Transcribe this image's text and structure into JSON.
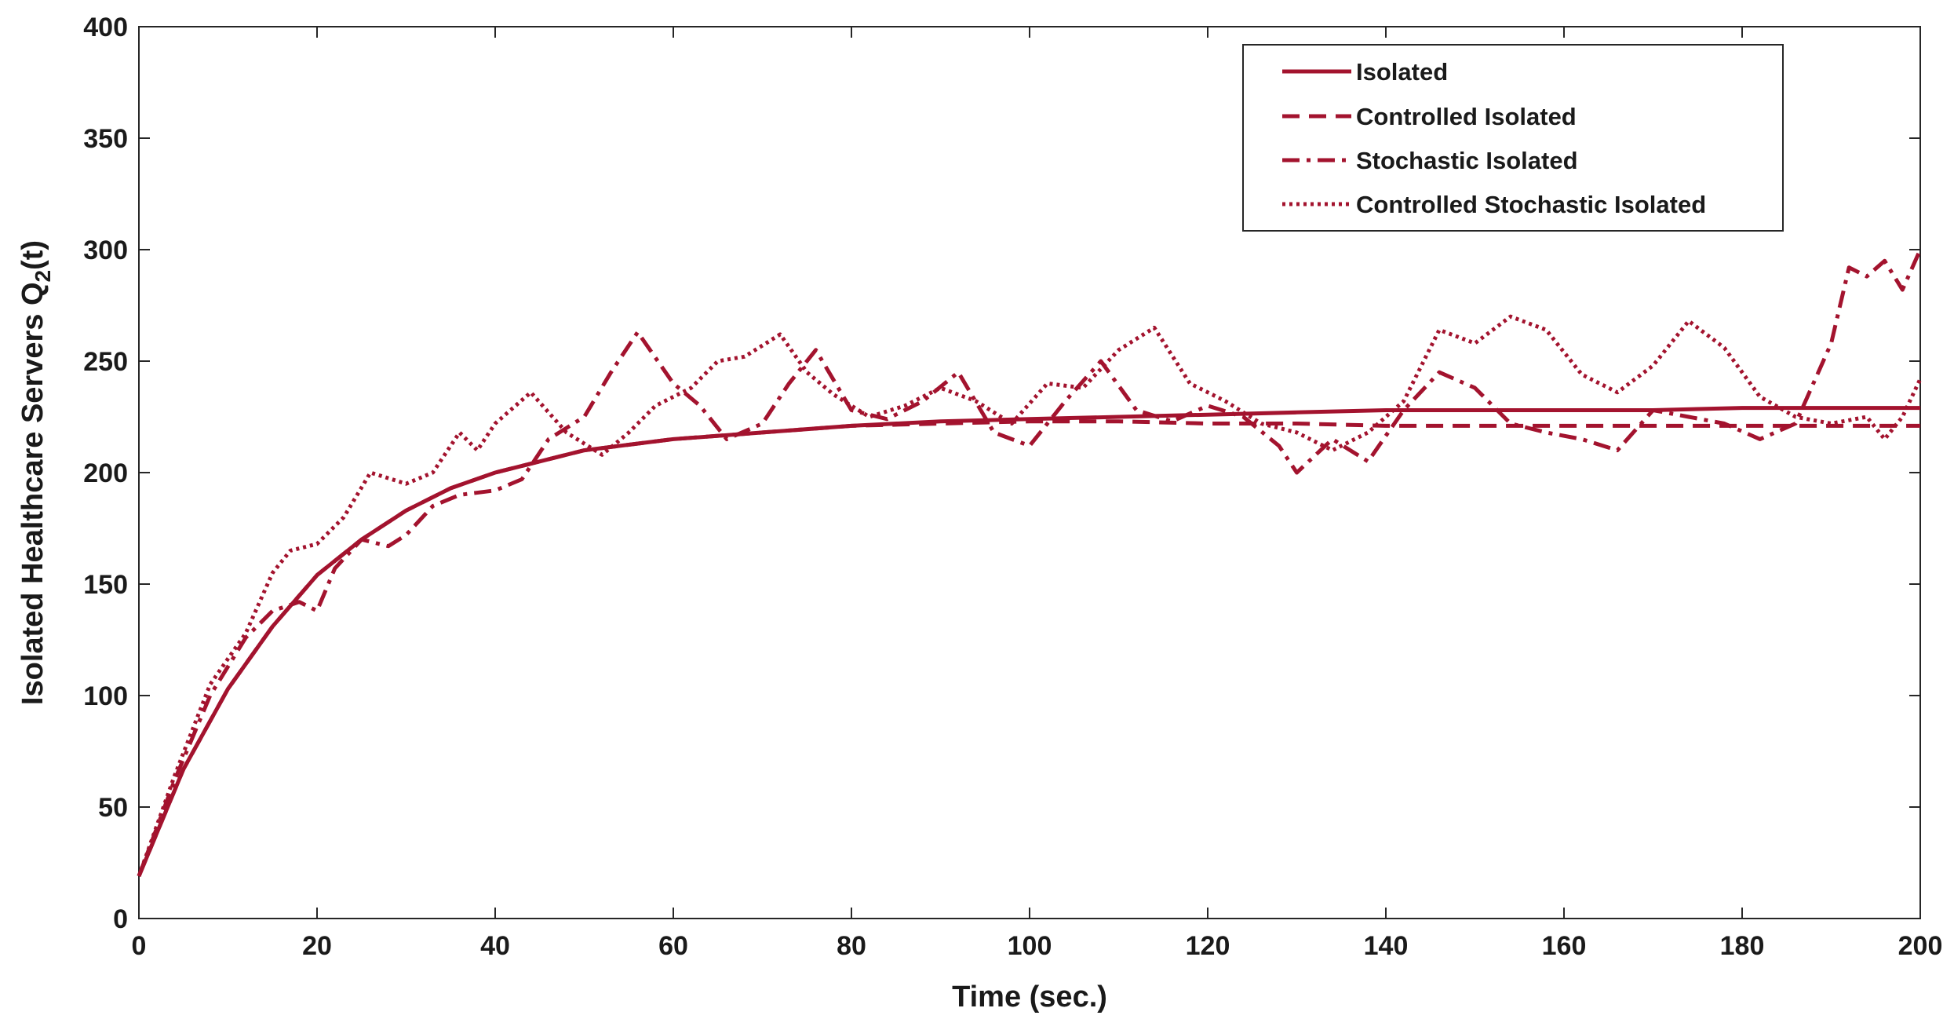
{
  "chart_data": {
    "type": "line",
    "title": "",
    "xlabel": "Time (sec.)",
    "ylabel": "Isolated Healthcare Servers Q",
    "ylabel_subscript": "2",
    "ylabel_suffix": "(t)",
    "xlim": [
      0,
      200
    ],
    "ylim": [
      0,
      400
    ],
    "x_ticks": [
      0,
      20,
      40,
      60,
      80,
      100,
      120,
      140,
      160,
      180,
      200
    ],
    "y_ticks": [
      0,
      50,
      100,
      150,
      200,
      250,
      300,
      350,
      400
    ],
    "grid": false,
    "legend_position": "top-right",
    "line_color": "#a3132e",
    "series": [
      {
        "name": "Isolated",
        "style": "solid",
        "x": [
          0,
          5,
          10,
          15,
          20,
          25,
          30,
          35,
          40,
          50,
          60,
          70,
          80,
          90,
          100,
          110,
          120,
          130,
          140,
          150,
          160,
          170,
          180,
          190,
          200
        ],
        "y": [
          19,
          67,
          103,
          131,
          154,
          170,
          183,
          193,
          200,
          210,
          215,
          218,
          221,
          223,
          224,
          225,
          226,
          227,
          228,
          228,
          228,
          228,
          229,
          229,
          229
        ]
      },
      {
        "name": "Controlled Isolated",
        "style": "dashed",
        "x": [
          0,
          5,
          10,
          15,
          20,
          25,
          30,
          35,
          40,
          50,
          60,
          70,
          80,
          90,
          100,
          110,
          120,
          130,
          140,
          150,
          160,
          170,
          180,
          190,
          200
        ],
        "y": [
          19,
          67,
          103,
          131,
          154,
          170,
          183,
          193,
          200,
          210,
          215,
          218,
          221,
          222,
          223,
          223,
          222,
          222,
          221,
          221,
          221,
          221,
          221,
          221,
          221
        ]
      },
      {
        "name": "Stochastic Isolated",
        "style": "dashdot",
        "x": [
          0,
          4,
          8,
          12,
          15,
          18,
          20,
          22,
          25,
          28,
          30,
          33,
          36,
          40,
          43,
          46,
          50,
          53,
          56,
          60,
          63,
          66,
          70,
          73,
          76,
          80,
          84,
          88,
          92,
          96,
          100,
          104,
          108,
          112,
          116,
          120,
          124,
          128,
          130,
          134,
          138,
          142,
          146,
          150,
          154,
          158,
          162,
          166,
          170,
          174,
          178,
          182,
          186,
          190,
          192,
          194,
          196,
          198,
          200
        ],
        "y": [
          19,
          62,
          100,
          126,
          138,
          142,
          138,
          157,
          170,
          167,
          172,
          185,
          190,
          192,
          197,
          215,
          225,
          245,
          263,
          240,
          230,
          215,
          222,
          240,
          255,
          228,
          224,
          232,
          245,
          218,
          212,
          232,
          250,
          228,
          223,
          230,
          225,
          212,
          200,
          215,
          205,
          228,
          245,
          238,
          222,
          218,
          215,
          210,
          228,
          225,
          222,
          215,
          222,
          258,
          292,
          288,
          295,
          282,
          300
        ]
      },
      {
        "name": "Controlled Stochastic Isolated",
        "style": "dotted",
        "x": [
          0,
          4,
          8,
          12,
          15,
          17,
          20,
          23,
          26,
          30,
          33,
          36,
          38,
          40,
          44,
          48,
          52,
          55,
          58,
          62,
          65,
          68,
          72,
          75,
          78,
          82,
          86,
          90,
          94,
          98,
          102,
          106,
          110,
          114,
          118,
          122,
          126,
          130,
          134,
          138,
          142,
          146,
          150,
          154,
          158,
          162,
          166,
          170,
          174,
          178,
          182,
          186,
          190,
          194,
          196,
          198,
          200
        ],
        "y": [
          19,
          64,
          105,
          128,
          155,
          165,
          168,
          180,
          200,
          195,
          200,
          218,
          210,
          222,
          236,
          218,
          208,
          218,
          230,
          238,
          250,
          252,
          262,
          245,
          235,
          225,
          230,
          238,
          232,
          222,
          240,
          238,
          255,
          265,
          240,
          232,
          222,
          218,
          210,
          218,
          232,
          264,
          258,
          270,
          264,
          244,
          236,
          248,
          268,
          256,
          234,
          225,
          222,
          225,
          215,
          225,
          242
        ]
      }
    ]
  }
}
